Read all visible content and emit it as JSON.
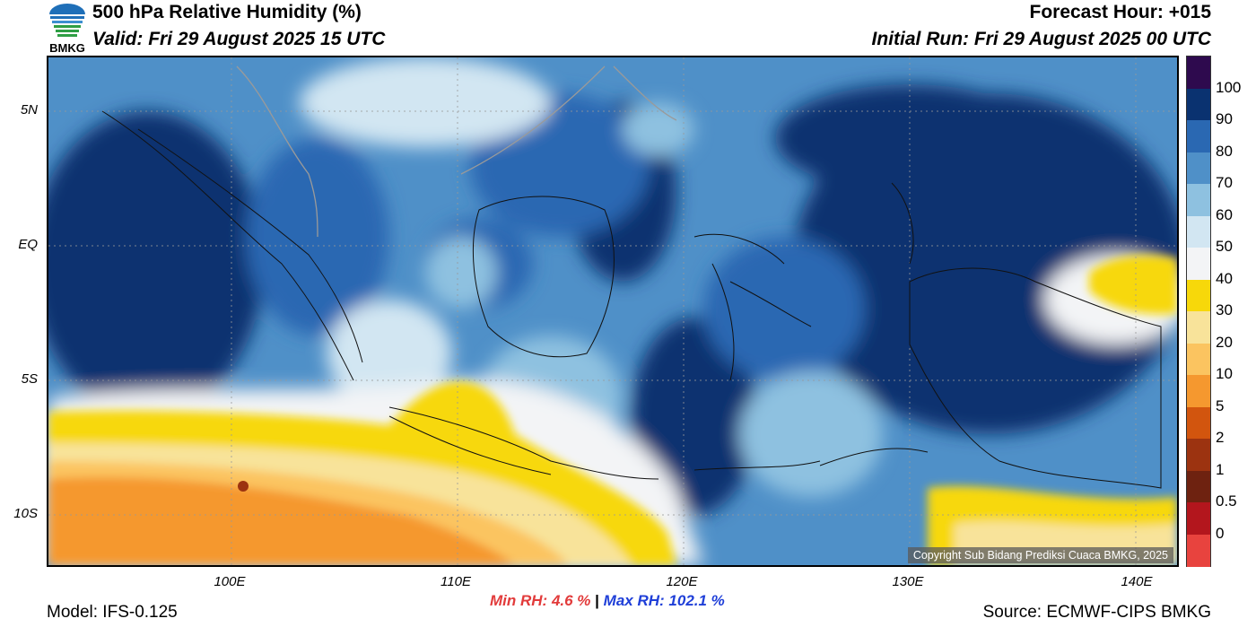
{
  "header": {
    "title": "500 hPa Relative Humidity (%)",
    "valid": "Valid: Fri 29 August 2025 15 UTC",
    "forecast_hour": "Forecast Hour: +015",
    "initial_run": "Initial Run: Fri 29 August 2025 00 UTC",
    "logo_text": "BMKG"
  },
  "map": {
    "lat_labels": [
      "5N",
      "EQ",
      "5S",
      "10S"
    ],
    "lon_labels": [
      "100E",
      "110E",
      "120E",
      "130E",
      "140E"
    ],
    "copyright": "Copyright Sub Bidang Prediksi Cuaca BMKG, 2025"
  },
  "colorbar": {
    "labels": [
      "100",
      "90",
      "80",
      "70",
      "60",
      "50",
      "40",
      "30",
      "20",
      "10",
      "5",
      "2",
      "1",
      "0.5",
      "0"
    ],
    "colors": [
      "#2e0a4e",
      "#0a3270",
      "#2a68b2",
      "#4f90c8",
      "#8ec1e0",
      "#d2e6f2",
      "#f3f4f6",
      "#f7d80a",
      "#f8e39a",
      "#fbc460",
      "#f5982f",
      "#d2550e",
      "#9c3310",
      "#6e2210",
      "#b3161d",
      "#e8433e"
    ]
  },
  "stats": {
    "min_label": "Min RH:",
    "min_value": "4.6 %",
    "separator": "|",
    "max_label": "Max RH:",
    "max_value": "102.1 %"
  },
  "footer": {
    "model": "Model: IFS-0.125",
    "source": "Source: ECMWF-CIPS BMKG"
  }
}
